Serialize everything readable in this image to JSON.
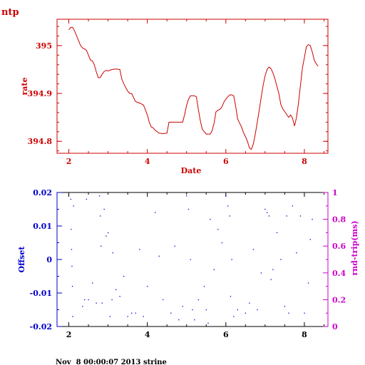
{
  "app_label": "ntp",
  "footer": "Nov  8 00:00:07 2013 strine",
  "colors": {
    "top": "#cc0000",
    "left_axis": "#0000cc",
    "right_axis": "#cc00cc",
    "frame": "#000000"
  },
  "chart_data": [
    {
      "type": "line",
      "title": "",
      "xlabel": "Date",
      "ylabel": "rate",
      "xlim": [
        1.7,
        8.6
      ],
      "ylim": [
        394.775,
        395.055
      ],
      "x_ticks": [
        2,
        4,
        6,
        8
      ],
      "y_ticks": [
        394.8,
        394.9,
        395
      ],
      "y_tick_labels": [
        "394.8",
        "394.9",
        "395"
      ],
      "grid": false,
      "series": [
        {
          "x": [
            2.0,
            2.05,
            2.1,
            2.15,
            2.2,
            2.25,
            2.3,
            2.35,
            2.4,
            2.45,
            2.5,
            2.55,
            2.6,
            2.65,
            2.7,
            2.75,
            2.8,
            2.85,
            2.9,
            2.95,
            3.0,
            3.1,
            3.2,
            3.3,
            3.35,
            3.4,
            3.45,
            3.5,
            3.55,
            3.6,
            3.7,
            3.8,
            3.9,
            3.95,
            4.0,
            4.05,
            4.1,
            4.15,
            4.2,
            4.3,
            4.4,
            4.5,
            4.55,
            4.6,
            4.7,
            4.8,
            4.9,
            4.95,
            5.0,
            5.05,
            5.1,
            5.15,
            5.2,
            5.25,
            5.3,
            5.35,
            5.4,
            5.45,
            5.5,
            5.55,
            5.6,
            5.65,
            5.7,
            5.75,
            5.8,
            5.85,
            5.9,
            5.95,
            6.0,
            6.05,
            6.1,
            6.15,
            6.2,
            6.25,
            6.3,
            6.35,
            6.4,
            6.45,
            6.5,
            6.55,
            6.6,
            6.65,
            6.7,
            6.75,
            6.8,
            6.85,
            6.9,
            6.95,
            7.0,
            7.05,
            7.1,
            7.15,
            7.2,
            7.25,
            7.3,
            7.35,
            7.4,
            7.45,
            7.5,
            7.55,
            7.6,
            7.65,
            7.7,
            7.75,
            7.8,
            7.85,
            7.9,
            7.95,
            8.0,
            8.05,
            8.1,
            8.15,
            8.2,
            8.25,
            8.3,
            8.35
          ],
          "y": [
            395.033,
            395.038,
            395.038,
            395.03,
            395.02,
            395.01,
            395.0,
            394.995,
            394.993,
            394.99,
            394.98,
            394.97,
            394.968,
            394.96,
            394.945,
            394.933,
            394.933,
            394.94,
            394.946,
            394.948,
            394.947,
            394.95,
            394.951,
            394.95,
            394.93,
            394.92,
            394.912,
            394.905,
            394.9,
            394.9,
            394.883,
            394.88,
            394.876,
            394.866,
            394.855,
            394.84,
            394.83,
            394.828,
            394.823,
            394.817,
            394.816,
            394.817,
            394.84,
            394.84,
            394.84,
            394.84,
            394.84,
            394.856,
            394.875,
            394.888,
            394.895,
            394.895,
            394.895,
            394.893,
            394.866,
            394.843,
            394.825,
            394.82,
            394.815,
            394.815,
            394.815,
            394.822,
            394.838,
            394.862,
            394.865,
            394.867,
            394.872,
            394.882,
            394.888,
            394.893,
            394.897,
            394.897,
            394.895,
            394.873,
            394.847,
            394.838,
            394.83,
            394.818,
            394.81,
            394.8,
            394.786,
            394.783,
            394.795,
            394.815,
            394.84,
            394.865,
            394.892,
            394.917,
            394.937,
            394.95,
            394.955,
            394.952,
            394.943,
            394.93,
            394.915,
            394.9,
            394.877,
            394.868,
            394.862,
            394.856,
            394.85,
            394.855,
            394.848,
            394.832,
            394.85,
            394.88,
            394.916,
            394.953,
            394.975,
            394.997,
            395.002,
            395.0,
            394.987,
            394.97,
            394.962,
            394.957
          ]
        }
      ]
    },
    {
      "type": "scatter",
      "title": "",
      "xlabel": "",
      "ylabel": "Offset",
      "y2label": "rnd-trip(ms)",
      "xlim": [
        1.7,
        8.6
      ],
      "ylim": [
        -0.02,
        0.02
      ],
      "y2lim": [
        0,
        1
      ],
      "x_ticks": [
        2,
        4,
        6,
        8
      ],
      "y_ticks": [
        -0.02,
        -0.01,
        0,
        0.01,
        0.02
      ],
      "y_tick_labels": [
        "-0.02",
        "-0.01",
        "0",
        "0.01",
        "0.02"
      ],
      "y2_ticks": [
        0,
        0.2,
        0.4,
        0.6,
        0.8,
        1
      ],
      "y2_tick_labels": [
        "0",
        "0.2",
        "0.4",
        "0.6",
        "0.8",
        "1"
      ],
      "grid": false,
      "series": [
        {
          "x": [
            2.05,
            2.06,
            2.07,
            2.08,
            2.09,
            2.1,
            2.12,
            2.35,
            2.4,
            2.45,
            2.5,
            2.6,
            2.7,
            2.78,
            2.8,
            2.82,
            2.85,
            2.9,
            2.95,
            3.0,
            3.05,
            3.1,
            3.12,
            3.2,
            3.3,
            3.4,
            3.5,
            3.6,
            3.7,
            3.8,
            3.9,
            4.0,
            4.2,
            4.3,
            4.4,
            4.6,
            4.7,
            4.8,
            4.9,
            5.0,
            5.05,
            5.1,
            5.15,
            5.2,
            5.3,
            5.45,
            5.5,
            5.55,
            5.6,
            5.7,
            5.8,
            5.9,
            6.0,
            6.05,
            6.1,
            6.12,
            6.15,
            6.2,
            6.3,
            6.5,
            6.6,
            6.7,
            6.8,
            6.9,
            7.0,
            7.05,
            7.1,
            7.15,
            7.2,
            7.3,
            7.4,
            7.5,
            7.55,
            7.6,
            7.7,
            7.8,
            7.9,
            8.0,
            8.1,
            8.15,
            8.2
          ],
          "y": [
            0.018,
            0.009,
            0.003,
            -0.002,
            -0.008,
            -0.017,
            0.016,
            -0.014,
            -0.012,
            0.018,
            -0.012,
            -0.007,
            -0.013,
            0.019,
            0.013,
            0.004,
            -0.013,
            0.015,
            0.007,
            0.008,
            -0.017,
            -0.012,
            0.002,
            -0.009,
            -0.011,
            -0.005,
            -0.017,
            -0.016,
            -0.016,
            0.003,
            -0.017,
            -0.008,
            0.014,
            0.001,
            -0.012,
            -0.016,
            0.004,
            -0.018,
            -0.014,
            0.019,
            0.015,
            0.0,
            -0.015,
            -0.018,
            -0.012,
            -0.008,
            -0.015,
            -0.019,
            0.012,
            -0.003,
            0.009,
            0.005,
            0.019,
            0.016,
            0.013,
            -0.011,
            0.0,
            -0.017,
            -0.015,
            -0.016,
            -0.013,
            0.003,
            -0.015,
            -0.004,
            0.015,
            0.014,
            0.013,
            -0.006,
            -0.003,
            0.008,
            0.0,
            -0.014,
            0.013,
            -0.016,
            0.016,
            0.002,
            0.013,
            -0.016,
            -0.007,
            0.006,
            0.012
          ]
        }
      ]
    }
  ]
}
